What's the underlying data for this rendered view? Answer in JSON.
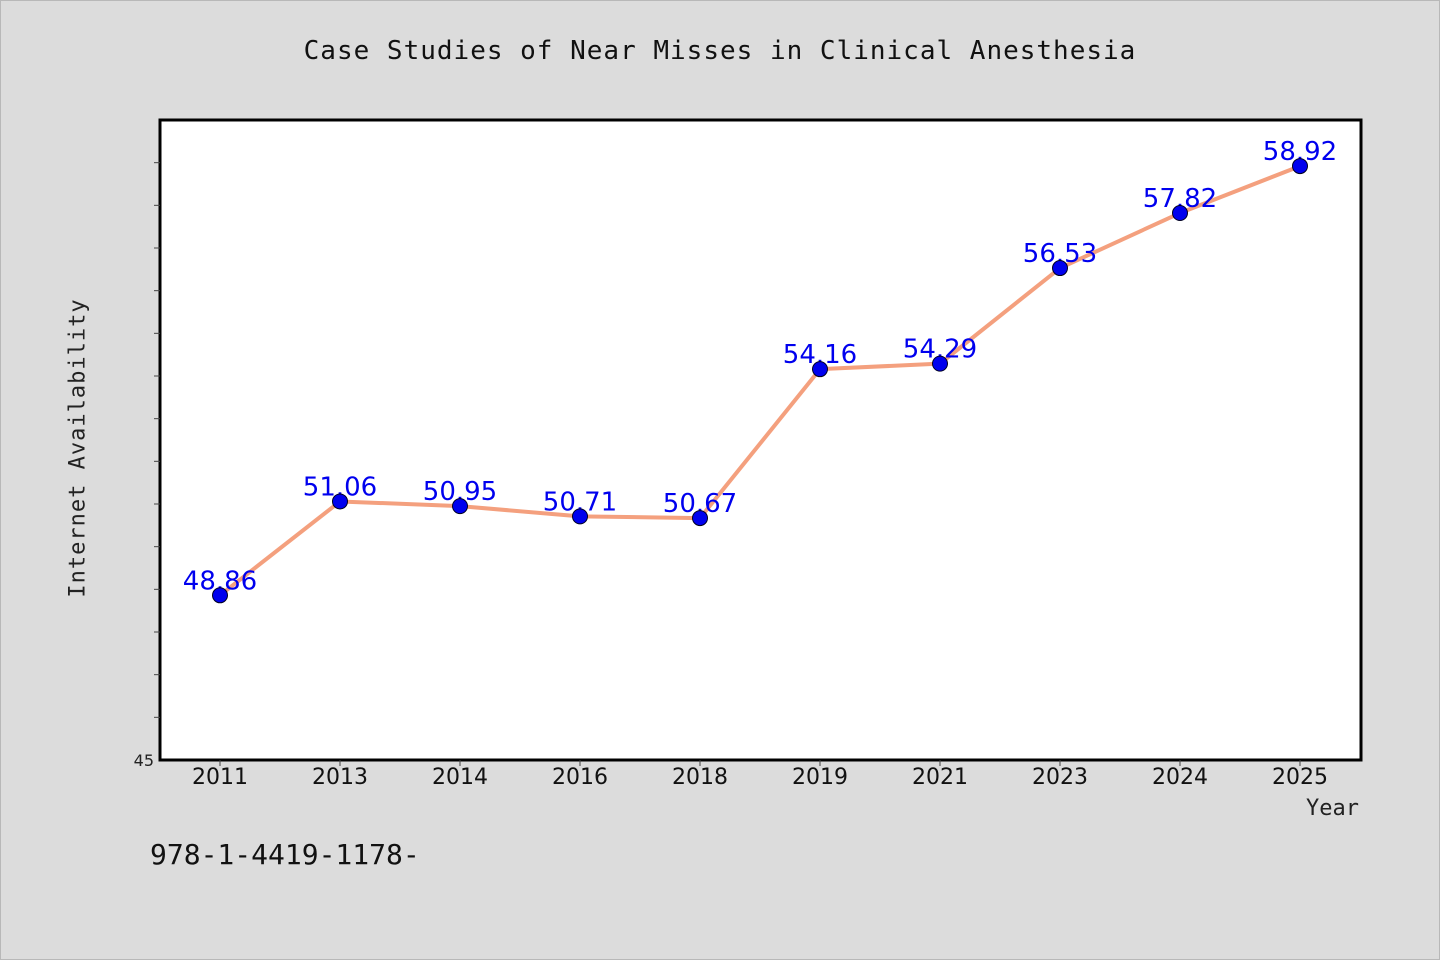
{
  "title": "Case Studies of Near Misses in Clinical Anesthesia",
  "footer_text": "978-1-4419-1178-",
  "chart_data": {
    "type": "line",
    "title": "Case Studies of Near Misses in Clinical Anesthesia",
    "xlabel": "Year",
    "ylabel": "Internet Availability",
    "categories": [
      "2011",
      "2013",
      "2014",
      "2016",
      "2018",
      "2019",
      "2021",
      "2023",
      "2024",
      "2025"
    ],
    "series": [
      {
        "values": [
          48.86,
          51.06,
          50.95,
          50.71,
          50.67,
          54.16,
          54.29,
          56.53,
          57.82,
          58.92
        ],
        "labels": [
          "48.86",
          "51.06",
          "50.95",
          "50.71",
          "50.67",
          "54.16",
          "54.29",
          "56.53",
          "57.82",
          "58.92"
        ]
      }
    ],
    "ylim": [
      45,
      60
    ],
    "y_tick_labels": [
      "45"
    ],
    "grid": false,
    "colors": {
      "line": "#f4a07e",
      "marker": "#0000ee",
      "label": "#0000ee"
    }
  }
}
